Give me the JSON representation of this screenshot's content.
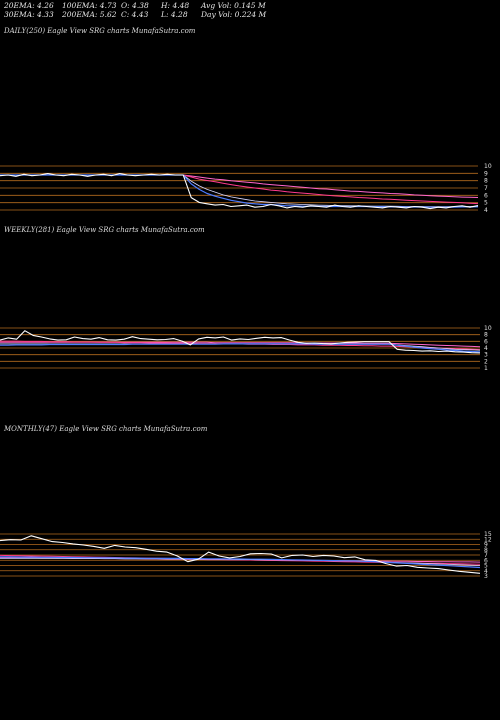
{
  "header": {
    "row1": [
      "20EMA: 4.26",
      "100EMA: 4.73",
      "O: 4.38",
      "H: 4.48",
      "Avg Vol: 0.145  M"
    ],
    "row2": [
      "30EMA: 4.33",
      "200EMA: 5.62",
      "C: 4.43",
      "L: 4.28",
      "Day Vol: 0.224  M"
    ]
  },
  "colors": {
    "background": "#000000",
    "price": "#ffffff",
    "ema20": "#4d7cff",
    "ema30": "#d7d7ff",
    "ema100": "#ff3b8e",
    "ema200": "#ff66cc",
    "grid": "#b36a1e"
  },
  "chart_data": [
    {
      "type": "line",
      "label": "DAILY(250) Eagle   View  SRG charts MunafaSutra.com",
      "yticks": [
        "10",
        "9",
        "8",
        "7",
        "6",
        "5",
        "4"
      ],
      "ylim": [
        3.5,
        10.5
      ],
      "price": [
        8.8,
        8.9,
        8.7,
        9.0,
        8.8,
        8.9,
        9.1,
        8.9,
        8.8,
        9.0,
        8.9,
        8.7,
        8.9,
        9.0,
        8.8,
        9.1,
        8.9,
        8.8,
        8.9,
        9.0,
        8.9,
        9.0,
        8.9,
        8.9,
        5.6,
        4.9,
        4.7,
        4.5,
        4.6,
        4.3,
        4.4,
        4.5,
        4.2,
        4.3,
        4.6,
        4.4,
        4.1,
        4.3,
        4.2,
        4.4,
        4.3,
        4.2,
        4.5,
        4.3,
        4.2,
        4.4,
        4.3,
        4.2,
        4.1,
        4.3,
        4.2,
        4.1,
        4.3,
        4.2,
        4.0,
        4.2,
        4.1,
        4.3,
        4.4,
        4.2,
        4.43
      ],
      "ema20": [
        8.9,
        8.9,
        8.9,
        8.9,
        8.9,
        8.9,
        8.9,
        8.9,
        8.9,
        8.9,
        8.9,
        8.9,
        8.9,
        8.9,
        8.9,
        8.9,
        8.9,
        8.9,
        8.9,
        8.9,
        8.9,
        8.9,
        8.9,
        8.9,
        7.6,
        6.8,
        6.2,
        5.8,
        5.5,
        5.2,
        5.0,
        4.8,
        4.7,
        4.6,
        4.6,
        4.5,
        4.4,
        4.4,
        4.35,
        4.35,
        4.33,
        4.3,
        4.32,
        4.3,
        4.28,
        4.3,
        4.3,
        4.28,
        4.25,
        4.26,
        4.25,
        4.22,
        4.24,
        4.23,
        4.2,
        4.2,
        4.2,
        4.22,
        4.25,
        4.25,
        4.26
      ],
      "ema30": [
        8.9,
        8.9,
        8.9,
        8.9,
        8.9,
        8.9,
        8.9,
        8.9,
        8.9,
        8.9,
        8.9,
        8.9,
        8.9,
        8.9,
        8.9,
        8.9,
        8.9,
        8.9,
        8.9,
        8.9,
        8.9,
        8.9,
        8.9,
        8.9,
        8.0,
        7.3,
        6.8,
        6.4,
        6.0,
        5.7,
        5.5,
        5.3,
        5.1,
        5.0,
        4.9,
        4.8,
        4.7,
        4.65,
        4.6,
        4.55,
        4.5,
        4.47,
        4.45,
        4.43,
        4.4,
        4.4,
        4.38,
        4.36,
        4.35,
        4.34,
        4.33,
        4.3,
        4.3,
        4.3,
        4.28,
        4.28,
        4.28,
        4.3,
        4.32,
        4.32,
        4.33
      ],
      "ema100": [
        8.9,
        8.9,
        8.9,
        8.9,
        8.9,
        8.9,
        8.9,
        8.9,
        8.9,
        8.9,
        8.9,
        8.9,
        8.9,
        8.9,
        8.9,
        8.9,
        8.9,
        8.9,
        8.9,
        8.9,
        8.9,
        8.9,
        8.9,
        8.9,
        8.6,
        8.3,
        8.1,
        7.9,
        7.7,
        7.5,
        7.3,
        7.15,
        7.0,
        6.85,
        6.7,
        6.6,
        6.45,
        6.35,
        6.25,
        6.15,
        6.05,
        5.95,
        5.85,
        5.78,
        5.7,
        5.62,
        5.55,
        5.48,
        5.4,
        5.35,
        5.28,
        5.22,
        5.16,
        5.1,
        5.05,
        5.0,
        4.95,
        4.9,
        4.85,
        4.78,
        4.73
      ],
      "ema200": [
        8.9,
        8.9,
        8.9,
        8.9,
        8.9,
        8.9,
        8.9,
        8.9,
        8.9,
        8.9,
        8.9,
        8.9,
        8.9,
        8.9,
        8.9,
        8.9,
        8.9,
        8.9,
        8.9,
        8.9,
        8.9,
        8.9,
        8.9,
        8.9,
        8.75,
        8.6,
        8.45,
        8.3,
        8.2,
        8.05,
        7.95,
        7.85,
        7.75,
        7.6,
        7.5,
        7.4,
        7.3,
        7.2,
        7.1,
        7.0,
        6.9,
        6.85,
        6.75,
        6.65,
        6.55,
        6.5,
        6.42,
        6.35,
        6.28,
        6.2,
        6.15,
        6.08,
        6.0,
        5.95,
        5.88,
        5.82,
        5.78,
        5.72,
        5.68,
        5.65,
        5.62
      ]
    },
    {
      "type": "line",
      "label": "WEEKLY(281) Eagle   View  SRG charts MunafaSutra.com",
      "yticks": [
        "10",
        "8",
        "6",
        "4",
        "3",
        "2",
        "1"
      ],
      "ylim": [
        -1,
        13
      ],
      "price": [
        8.5,
        9.2,
        8.8,
        11.5,
        10.0,
        9.5,
        8.9,
        8.5,
        8.6,
        9.5,
        9.0,
        8.8,
        9.3,
        8.6,
        8.5,
        8.8,
        9.6,
        9.0,
        8.8,
        8.6,
        8.7,
        9.0,
        8.2,
        7.0,
        8.9,
        9.4,
        9.2,
        9.5,
        8.5,
        8.9,
        8.7,
        9.1,
        9.4,
        9.2,
        9.3,
        8.5,
        7.8,
        7.5,
        7.6,
        7.4,
        7.3,
        7.6,
        7.8,
        7.9,
        8.0,
        8.0,
        8.0,
        8.0,
        5.6,
        5.3,
        5.2,
        5.0,
        5.1,
        4.9,
        5.0,
        4.8,
        4.7,
        4.5,
        4.43
      ],
      "ema20": [
        6.9,
        6.9,
        7.0,
        7.0,
        7.0,
        7.0,
        7.1,
        7.1,
        7.1,
        7.1,
        7.1,
        7.1,
        7.1,
        7.1,
        7.1,
        7.1,
        7.2,
        7.2,
        7.2,
        7.2,
        7.2,
        7.2,
        7.2,
        7.2,
        7.2,
        7.2,
        7.2,
        7.3,
        7.3,
        7.3,
        7.3,
        7.3,
        7.3,
        7.3,
        7.3,
        7.3,
        7.3,
        7.3,
        7.2,
        7.2,
        7.2,
        7.2,
        7.2,
        7.2,
        7.2,
        7.2,
        7.2,
        7.2,
        6.9,
        6.6,
        6.3,
        6.0,
        5.8,
        5.6,
        5.4,
        5.2,
        5.0,
        4.9,
        4.8
      ],
      "ema30": [
        7.3,
        7.3,
        7.3,
        7.3,
        7.3,
        7.3,
        7.3,
        7.3,
        7.3,
        7.3,
        7.3,
        7.3,
        7.3,
        7.3,
        7.3,
        7.3,
        7.3,
        7.3,
        7.3,
        7.3,
        7.3,
        7.3,
        7.3,
        7.3,
        7.3,
        7.3,
        7.3,
        7.3,
        7.3,
        7.3,
        7.3,
        7.3,
        7.3,
        7.3,
        7.3,
        7.3,
        7.3,
        7.3,
        7.3,
        7.3,
        7.2,
        7.2,
        7.2,
        7.2,
        7.2,
        7.2,
        7.2,
        7.2,
        7.0,
        6.8,
        6.6,
        6.4,
        6.2,
        6.0,
        5.8,
        5.6,
        5.5,
        5.4,
        5.3
      ],
      "ema100": [
        8.2,
        8.2,
        8.2,
        8.1,
        8.1,
        8.1,
        8.0,
        8.0,
        8.0,
        7.9,
        7.9,
        7.9,
        7.8,
        7.8,
        7.8,
        7.7,
        7.7,
        7.7,
        7.6,
        7.6,
        7.6,
        7.5,
        7.5,
        7.5,
        7.4,
        7.4,
        7.4,
        7.3,
        7.3,
        7.3,
        7.2,
        7.2,
        7.2,
        7.1,
        7.1,
        7.1,
        7.0,
        7.0,
        7.0,
        6.9,
        6.9,
        6.9,
        6.8,
        6.8,
        6.7,
        6.7,
        6.6,
        6.6,
        6.5,
        6.4,
        6.3,
        6.2,
        6.1,
        6.0,
        5.9,
        5.8,
        5.7,
        5.6,
        5.5
      ],
      "ema200": [
        7.8,
        7.8,
        7.8,
        7.8,
        7.8,
        7.8,
        7.8,
        7.8,
        7.8,
        7.8,
        7.8,
        7.8,
        7.8,
        7.8,
        7.8,
        7.8,
        7.8,
        7.8,
        7.8,
        7.8,
        7.8,
        7.8,
        7.8,
        7.8,
        7.8,
        7.8,
        7.7,
        7.7,
        7.7,
        7.7,
        7.7,
        7.7,
        7.7,
        7.7,
        7.7,
        7.7,
        7.7,
        7.6,
        7.6,
        7.6,
        7.6,
        7.6,
        7.6,
        7.6,
        7.5,
        7.5,
        7.5,
        7.5,
        7.4,
        7.3,
        7.2,
        7.1,
        7.0,
        6.9,
        6.8,
        6.7,
        6.6,
        6.5,
        6.4
      ]
    },
    {
      "type": "line",
      "label": "MONTHLY(47) Eagle   View  SRG charts MunafaSutra.com",
      "yticks": [
        "15",
        "12",
        "9",
        "8",
        "7",
        "6",
        "5",
        "4",
        "3"
      ],
      "ylim": [
        2,
        26
      ],
      "price": [
        21.5,
        22.0,
        21.8,
        24.0,
        22.5,
        21.0,
        20.5,
        19.8,
        19.2,
        18.5,
        17.5,
        19.0,
        18.2,
        17.8,
        17.0,
        16.0,
        15.5,
        13.5,
        10.5,
        11.8,
        15.5,
        13.5,
        12.5,
        13.2,
        14.6,
        14.8,
        14.5,
        12.5,
        13.8,
        14.0,
        13.2,
        13.8,
        13.5,
        12.6,
        13.0,
        11.5,
        11.2,
        9.5,
        8.2,
        8.5,
        7.6,
        7.2,
        6.9,
        6.2,
        5.5,
        5.0,
        4.43
      ],
      "ema20": [
        13.0,
        13.0,
        12.9,
        12.9,
        12.8,
        12.8,
        12.7,
        12.7,
        12.6,
        12.6,
        12.5,
        12.5,
        12.4,
        12.4,
        12.3,
        12.3,
        12.2,
        12.2,
        12.1,
        12.1,
        12.0,
        12.0,
        11.9,
        11.9,
        11.8,
        11.8,
        11.7,
        11.6,
        11.5,
        11.4,
        11.3,
        11.2,
        11.1,
        11.0,
        10.9,
        10.7,
        10.5,
        10.2,
        9.9,
        9.6,
        9.3,
        9.0,
        8.7,
        8.4,
        8.1,
        7.8,
        7.5
      ],
      "ema30": [
        12.2,
        12.2,
        12.2,
        12.2,
        12.2,
        12.2,
        12.2,
        12.1,
        12.1,
        12.1,
        12.1,
        12.1,
        12.0,
        12.0,
        12.0,
        12.0,
        11.9,
        11.9,
        11.9,
        11.8,
        11.8,
        11.7,
        11.7,
        11.6,
        11.6,
        11.5,
        11.5,
        11.4,
        11.3,
        11.3,
        11.2,
        11.1,
        11.0,
        10.9,
        10.8,
        10.7,
        10.5,
        10.3,
        10.1,
        9.9,
        9.7,
        9.5,
        9.3,
        9.1,
        8.9,
        8.7,
        8.5
      ],
      "ema100": [
        13.8,
        13.7,
        13.6,
        13.5,
        13.4,
        13.3,
        13.2,
        13.1,
        13.0,
        12.9,
        12.8,
        12.7,
        12.6,
        12.5,
        12.4,
        12.3,
        12.2,
        12.1,
        12.0,
        11.9,
        11.8,
        11.7,
        11.6,
        11.5,
        11.4,
        11.3,
        11.2,
        11.1,
        11.0,
        10.9,
        10.8,
        10.7,
        10.6,
        10.5,
        10.4,
        10.3,
        10.2,
        10.1,
        10.0,
        9.9,
        9.8,
        9.7,
        9.6,
        9.5,
        9.4,
        9.3,
        9.2
      ],
      "ema200": [
        12.6,
        12.6,
        12.5,
        12.5,
        12.4,
        12.4,
        12.3,
        12.3,
        12.2,
        12.2,
        12.1,
        12.1,
        12.0,
        12.0,
        11.9,
        11.9,
        11.8,
        11.8,
        11.7,
        11.7,
        11.6,
        11.6,
        11.5,
        11.5,
        11.4,
        11.4,
        11.3,
        11.3,
        11.2,
        11.2,
        11.1,
        11.1,
        11.0,
        11.0,
        10.9,
        10.9,
        10.8,
        10.8,
        10.7,
        10.7,
        10.6,
        10.6,
        10.5,
        10.5,
        10.4,
        10.4,
        10.3
      ]
    }
  ]
}
